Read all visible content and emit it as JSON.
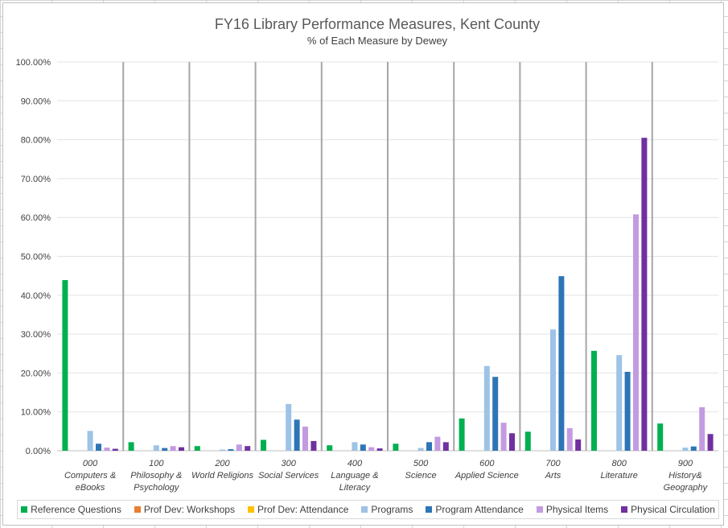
{
  "chart_data": {
    "type": "bar",
    "title": "FY16 Library Performance Measures, Kent County",
    "subtitle": "% of Each Measure by Dewey",
    "ylim": [
      0,
      100
    ],
    "yticks": [
      "0.00%",
      "10.00%",
      "20.00%",
      "30.00%",
      "40.00%",
      "50.00%",
      "60.00%",
      "70.00%",
      "80.00%",
      "90.00%",
      "100.00%"
    ],
    "categories": [
      [
        "000",
        "Computers &",
        "eBooks"
      ],
      [
        "100",
        "Philosophy &",
        "Psychology"
      ],
      [
        "200",
        "World Religions"
      ],
      [
        "300",
        "Social Services"
      ],
      [
        "400",
        "Language &",
        "Literacy"
      ],
      [
        "500",
        "Science"
      ],
      [
        "600",
        "Applied Science"
      ],
      [
        "700",
        "Arts"
      ],
      [
        "800",
        "Literature"
      ],
      [
        "900",
        "History&",
        "Geography"
      ]
    ],
    "series": [
      {
        "name": "Reference Questions",
        "color": "#00b050",
        "values": [
          43.9,
          2.2,
          1.2,
          2.8,
          1.4,
          1.8,
          8.3,
          4.9,
          25.7,
          7.0
        ]
      },
      {
        "name": "Prof Dev: Workshops",
        "color": "#ed7d31",
        "values": [
          0,
          0,
          0,
          0,
          0,
          0,
          0,
          0,
          0,
          0
        ]
      },
      {
        "name": "Prof Dev: Attendance",
        "color": "#ffc000",
        "values": [
          0,
          0,
          0,
          0,
          0,
          0,
          0,
          0,
          0,
          0
        ]
      },
      {
        "name": "Programs",
        "color": "#9dc3e6",
        "values": [
          5.1,
          1.4,
          0.3,
          12.0,
          2.2,
          0.7,
          21.8,
          31.2,
          24.6,
          0.8
        ]
      },
      {
        "name": "Program Attendance",
        "color": "#2e75b6",
        "values": [
          1.8,
          0.7,
          0.4,
          8.0,
          1.6,
          2.2,
          19.0,
          44.9,
          20.3,
          1.1
        ]
      },
      {
        "name": "Physical Items",
        "color": "#c39be0",
        "values": [
          0.8,
          1.2,
          1.6,
          6.2,
          0.9,
          3.6,
          7.2,
          5.8,
          60.8,
          11.2
        ]
      },
      {
        "name": "Physical Circulation",
        "color": "#7030a0",
        "values": [
          0.5,
          0.9,
          1.2,
          2.5,
          0.6,
          2.2,
          4.5,
          2.9,
          80.5,
          4.3
        ]
      }
    ]
  }
}
